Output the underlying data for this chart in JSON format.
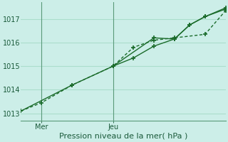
{
  "xlabel": "Pression niveau de la mer( hPa )",
  "bg_color": "#cceee8",
  "grid_color": "#aaddcc",
  "line_color": "#1a6b2a",
  "vline_color": "#5a9a7a",
  "ylim": [
    1012.7,
    1017.7
  ],
  "yticks": [
    1013,
    1014,
    1015,
    1016,
    1017
  ],
  "xlim": [
    0,
    10
  ],
  "x_mer": 1.0,
  "x_jeu": 4.5,
  "series1_x": [
    0.0,
    1.0,
    2.5,
    4.5,
    5.5,
    6.5,
    7.5,
    9.0,
    10.0
  ],
  "series1_y": [
    1013.1,
    1013.45,
    1014.2,
    1015.0,
    1015.8,
    1016.1,
    1016.2,
    1016.35,
    1017.35
  ],
  "series2_x": [
    4.5,
    5.5,
    6.5,
    7.5,
    8.25,
    9.0,
    10.0
  ],
  "series2_y": [
    1015.0,
    1015.35,
    1015.85,
    1016.15,
    1016.75,
    1017.1,
    1017.42
  ],
  "series3_x": [
    0.0,
    2.5,
    4.5,
    6.5,
    7.5,
    8.25,
    9.0,
    10.0
  ],
  "series3_y": [
    1013.1,
    1014.2,
    1015.0,
    1016.2,
    1016.15,
    1016.75,
    1017.1,
    1017.47
  ],
  "tick_fontsize": 7,
  "label_fontsize": 8,
  "fig_width": 3.2,
  "fig_height": 2.0,
  "dpi": 100
}
